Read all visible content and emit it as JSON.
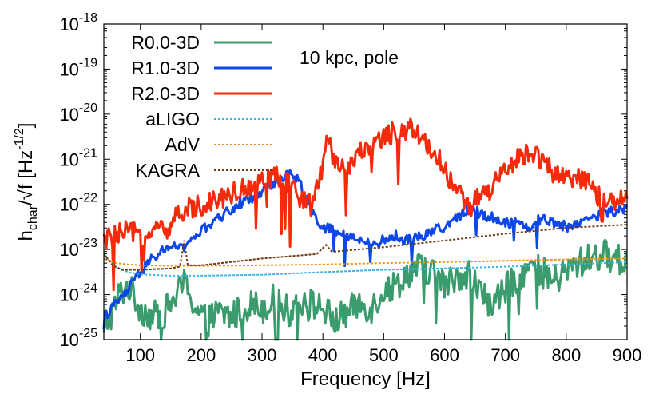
{
  "chart_data": {
    "type": "line",
    "xlabel": "Frequency [Hz]",
    "ylabel": "h_char/√f [Hz^-1/2]",
    "xlim": [
      40,
      900
    ],
    "ylim_exponents": [
      -25,
      -18
    ],
    "y_scale": "log",
    "x_ticks": [
      100,
      200,
      300,
      400,
      500,
      600,
      700,
      800,
      900
    ],
    "y_tick_exponents": [
      -25,
      -24,
      -23,
      -22,
      -21,
      -20,
      -19,
      -18
    ],
    "annotation": "10 kpc, pole",
    "legend_position": "top-left",
    "series": [
      {
        "name": "R0.0-3D",
        "color": "#3a9b6c",
        "style": "solid",
        "points": [
          [
            40,
            -25
          ],
          [
            45,
            -24.6
          ],
          [
            55,
            -24.4
          ],
          [
            65,
            -24
          ],
          [
            80,
            -23.8
          ],
          [
            100,
            -24.3
          ],
          [
            120,
            -24.5
          ],
          [
            140,
            -24.4
          ],
          [
            160,
            -24
          ],
          [
            175,
            -23.7
          ],
          [
            190,
            -24.3
          ],
          [
            210,
            -24.6
          ],
          [
            230,
            -24.4
          ],
          [
            250,
            -24.5
          ],
          [
            280,
            -24.2
          ],
          [
            300,
            -24.3
          ],
          [
            320,
            -24.1
          ],
          [
            345,
            -24.4
          ],
          [
            360,
            -24.1
          ],
          [
            380,
            -24.2
          ],
          [
            400,
            -24.3
          ],
          [
            420,
            -24.6
          ],
          [
            440,
            -24.4
          ],
          [
            460,
            -24.2
          ],
          [
            480,
            -24.3
          ],
          [
            500,
            -23.9
          ],
          [
            520,
            -23.8
          ],
          [
            540,
            -23.5
          ],
          [
            560,
            -23.4
          ],
          [
            580,
            -23.5
          ],
          [
            600,
            -23.8
          ],
          [
            620,
            -23.6
          ],
          [
            640,
            -23.5
          ],
          [
            660,
            -24.0
          ],
          [
            680,
            -24.2
          ],
          [
            700,
            -23.9
          ],
          [
            720,
            -23.6
          ],
          [
            740,
            -23.4
          ],
          [
            760,
            -23.5
          ],
          [
            780,
            -23.7
          ],
          [
            800,
            -23.5
          ],
          [
            820,
            -23.3
          ],
          [
            840,
            -23.2
          ],
          [
            860,
            -23.1
          ],
          [
            880,
            -23.2
          ],
          [
            900,
            -23.3
          ]
        ]
      },
      {
        "name": "R1.0-3D",
        "color": "#0e47e8",
        "style": "solid",
        "points": [
          [
            40,
            -24.5
          ],
          [
            60,
            -24.2
          ],
          [
            80,
            -23.9
          ],
          [
            100,
            -23.5
          ],
          [
            120,
            -23.2
          ],
          [
            150,
            -22.9
          ],
          [
            170,
            -23
          ],
          [
            180,
            -22.8
          ],
          [
            200,
            -22.6
          ],
          [
            230,
            -22.3
          ],
          [
            260,
            -22
          ],
          [
            290,
            -21.8
          ],
          [
            310,
            -21.6
          ],
          [
            330,
            -21.4
          ],
          [
            350,
            -21.3
          ],
          [
            370,
            -21.7
          ],
          [
            380,
            -22.1
          ],
          [
            400,
            -22.5
          ],
          [
            420,
            -22.6
          ],
          [
            440,
            -22.7
          ],
          [
            460,
            -22.8
          ],
          [
            480,
            -22.9
          ],
          [
            500,
            -22.8
          ],
          [
            520,
            -22.7
          ],
          [
            540,
            -22.8
          ],
          [
            560,
            -22.7
          ],
          [
            580,
            -22.6
          ],
          [
            600,
            -22.5
          ],
          [
            620,
            -22.3
          ],
          [
            640,
            -22.1
          ],
          [
            660,
            -22.2
          ],
          [
            680,
            -22.3
          ],
          [
            700,
            -22.4
          ],
          [
            720,
            -22.4
          ],
          [
            740,
            -22.5
          ],
          [
            760,
            -22.3
          ],
          [
            780,
            -22.4
          ],
          [
            800,
            -22.5
          ],
          [
            820,
            -22.4
          ],
          [
            840,
            -22.3
          ],
          [
            860,
            -22.2
          ],
          [
            880,
            -22.15
          ],
          [
            900,
            -22.1
          ]
        ]
      },
      {
        "name": "R2.0-3D",
        "color": "#f52a0a",
        "style": "solid",
        "points": [
          [
            40,
            -22.8
          ],
          [
            60,
            -22.7
          ],
          [
            80,
            -22.6
          ],
          [
            100,
            -22.7
          ],
          [
            120,
            -22.6
          ],
          [
            140,
            -22.5
          ],
          [
            160,
            -22.3
          ],
          [
            180,
            -22.1
          ],
          [
            200,
            -22.0
          ],
          [
            220,
            -21.9
          ],
          [
            240,
            -21.8
          ],
          [
            260,
            -21.7
          ],
          [
            280,
            -21.6
          ],
          [
            300,
            -21.4
          ],
          [
            320,
            -21.4
          ],
          [
            340,
            -21.5
          ],
          [
            360,
            -21.8
          ],
          [
            380,
            -22.0
          ],
          [
            395,
            -21.5
          ],
          [
            405,
            -20.5
          ],
          [
            420,
            -21.0
          ],
          [
            440,
            -21.2
          ],
          [
            460,
            -20.9
          ],
          [
            480,
            -20.7
          ],
          [
            500,
            -20.5
          ],
          [
            520,
            -20.4
          ],
          [
            540,
            -20.3
          ],
          [
            560,
            -20.5
          ],
          [
            580,
            -20.8
          ],
          [
            600,
            -21.2
          ],
          [
            620,
            -21.7
          ],
          [
            640,
            -22.1
          ],
          [
            660,
            -21.8
          ],
          [
            680,
            -21.6
          ],
          [
            700,
            -21.3
          ],
          [
            720,
            -21.0
          ],
          [
            740,
            -20.8
          ],
          [
            760,
            -21.0
          ],
          [
            780,
            -21.3
          ],
          [
            800,
            -21.5
          ],
          [
            820,
            -21.4
          ],
          [
            840,
            -21.6
          ],
          [
            860,
            -21.9
          ],
          [
            880,
            -22.0
          ],
          [
            900,
            -21.8
          ]
        ]
      },
      {
        "name": "aLIGO",
        "color": "#3ab4e6",
        "style": "dotted",
        "points": [
          [
            40,
            -23.1
          ],
          [
            60,
            -23.4
          ],
          [
            80,
            -23.5
          ],
          [
            100,
            -23.55
          ],
          [
            150,
            -23.58
          ],
          [
            200,
            -23.58
          ],
          [
            300,
            -23.56
          ],
          [
            400,
            -23.5
          ],
          [
            500,
            -23.45
          ],
          [
            600,
            -23.42
          ],
          [
            700,
            -23.38
          ],
          [
            800,
            -23.33
          ],
          [
            900,
            -23.28
          ]
        ]
      },
      {
        "name": "AdV",
        "color": "#f0920a",
        "style": "dotted",
        "points": [
          [
            40,
            -23.2
          ],
          [
            60,
            -23.3
          ],
          [
            80,
            -23.33
          ],
          [
            100,
            -23.35
          ],
          [
            150,
            -23.36
          ],
          [
            200,
            -23.36
          ],
          [
            300,
            -23.35
          ],
          [
            400,
            -23.33
          ],
          [
            500,
            -23.3
          ],
          [
            600,
            -23.28
          ],
          [
            700,
            -23.25
          ],
          [
            800,
            -23.22
          ],
          [
            900,
            -23.2
          ]
        ]
      },
      {
        "name": "KAGRA",
        "color": "#6e3a12",
        "style": "dotted",
        "points": [
          [
            40,
            -23.1
          ],
          [
            55,
            -23.35
          ],
          [
            70,
            -23.45
          ],
          [
            100,
            -23.45
          ],
          [
            150,
            -23.42
          ],
          [
            165,
            -23.38
          ],
          [
            172,
            -22.8
          ],
          [
            178,
            -23.35
          ],
          [
            200,
            -23.35
          ],
          [
            300,
            -23.2
          ],
          [
            390,
            -23.1
          ],
          [
            405,
            -22.9
          ],
          [
            415,
            -23.05
          ],
          [
            500,
            -22.95
          ],
          [
            600,
            -22.8
          ],
          [
            700,
            -22.65
          ],
          [
            800,
            -22.52
          ],
          [
            900,
            -22.45
          ]
        ]
      }
    ]
  }
}
